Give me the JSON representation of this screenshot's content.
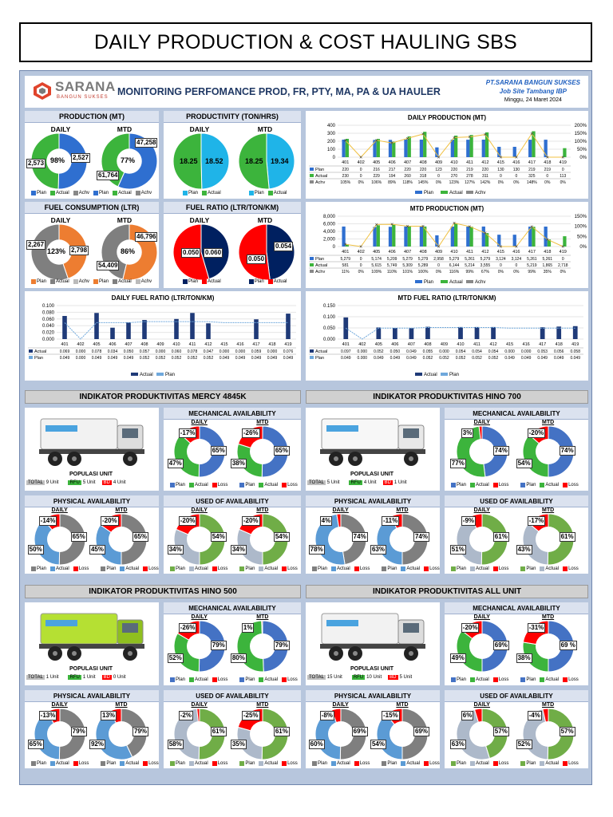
{
  "page_title": "DAILY PRODUCTION & COST HAULING SBS",
  "header": {
    "logo_name": "SARANA",
    "logo_sub": "BANGUN SUKSES",
    "title": "MONITORING PERFOMANCE PROD, FR, PTY, MA, PA & UA HAULER",
    "company": "PT.SARANA BANGUN SUKSES",
    "site": "Job Site Tambang IBP",
    "date": "Minggu, 24 Maret 2024"
  },
  "colors": {
    "plan": "#2f6fd0",
    "actual": "#3cb43c",
    "achv": "#888888",
    "orange": "#ed7d31",
    "navy": "#002060",
    "red": "#ff0000",
    "ma_blue": "#4472c4",
    "light_blue": "#5b9bd5",
    "green": "#70ad47"
  },
  "panels": {
    "production": {
      "title": "PRODUCTION (MT)",
      "daily_label": "DAILY",
      "mtd_label": "MTD",
      "daily_plan": "2,573",
      "daily_actual": "2,527",
      "daily_pct": "98%",
      "mtd_plan": "61,764",
      "mtd_actual": "47,258",
      "mtd_pct": "77%",
      "legend": [
        "Plan",
        "Actual",
        "Achv"
      ]
    },
    "productivity": {
      "title": "PRODUCTIVITY (TON/HRS)",
      "daily_label": "DAILY",
      "mtd_label": "MTD",
      "daily_plan": "18.25",
      "daily_actual": "18.52",
      "mtd_plan": "18.25",
      "mtd_actual": "19.34",
      "legend": [
        "Plan",
        "Actual"
      ]
    },
    "fuel_consumption": {
      "title": "FUEL CONSUMPTION (LTR)",
      "daily_label": "DAILY",
      "mtd_label": "MTD",
      "daily_plan": "2,267",
      "daily_actual": "2,798",
      "daily_pct": "123%",
      "mtd_plan": "54,409",
      "mtd_actual": "46,796",
      "mtd_pct": "86%",
      "legend": [
        "Plan",
        "Actual",
        "Achv"
      ]
    },
    "fuel_ratio": {
      "title": "FUEL RATIO (LTR/TON/KM)",
      "daily_label": "DAILY",
      "mtd_label": "MTD",
      "daily_plan": "0.050",
      "daily_actual": "0.060",
      "mtd_plan": "0.050",
      "mtd_actual": "0.054",
      "legend": [
        "Plan",
        "Actual"
      ]
    }
  },
  "chart_data": [
    {
      "type": "bar",
      "title": "DAILY PRODUCTION (MT)",
      "categories": [
        "401",
        "402",
        "405",
        "406",
        "407",
        "408",
        "409",
        "410",
        "411",
        "412",
        "415",
        "416",
        "417",
        "418",
        "419"
      ],
      "y_ticks": [
        "400",
        "300",
        "200",
        "100",
        "0"
      ],
      "y2_ticks": [
        "200%",
        "150%",
        "100%",
        "50%",
        "0%"
      ],
      "ylim": [
        0,
        400
      ],
      "series": [
        {
          "name": "Plan",
          "values": [
            220,
            0,
            216,
            217,
            220,
            220,
            123,
            220,
            219,
            220,
            130,
            130,
            219,
            219,
            0
          ],
          "labels": [
            "220",
            "0",
            "216",
            "217",
            "220",
            "220",
            "123",
            "220",
            "219",
            "220",
            "130",
            "130",
            "219",
            "219",
            "0"
          ]
        },
        {
          "name": "Actual",
          "values": [
            230,
            0,
            229,
            194,
            260,
            318,
            0,
            270,
            278,
            311,
            0,
            0,
            325,
            0,
            113
          ],
          "labels": [
            "230",
            "0",
            "229",
            "194",
            "260",
            "318",
            "0",
            "270",
            "278",
            "311",
            "0",
            "0",
            "325",
            "0",
            "113"
          ]
        },
        {
          "name": "Achv",
          "values": [
            105,
            0,
            106,
            89,
            118,
            145,
            0,
            123,
            127,
            142,
            0,
            0,
            148,
            0,
            0
          ],
          "labels": [
            "105%",
            "0%",
            "106%",
            "89%",
            "118%",
            "145%",
            "0%",
            "123%",
            "127%",
            "142%",
            "0%",
            "0%",
            "148%",
            "0%",
            "0%"
          ]
        }
      ]
    },
    {
      "type": "bar",
      "title": "MTD PRODUCTION (MT)",
      "categories": [
        "401",
        "402",
        "405",
        "406",
        "407",
        "408",
        "409",
        "410",
        "411",
        "412",
        "415",
        "416",
        "417",
        "418",
        "419"
      ],
      "y_ticks": [
        "8,000",
        "6,000",
        "4,000",
        "2,000",
        "0"
      ],
      "y2_ticks": [
        "150%",
        "100%",
        "50%",
        "0%"
      ],
      "ylim": [
        0,
        8000
      ],
      "series": [
        {
          "name": "Plan",
          "values": [
            5279,
            0,
            5174,
            5209,
            5279,
            5279,
            2958,
            5279,
            5261,
            5279,
            3124,
            3124,
            5261,
            5261,
            0
          ],
          "labels": [
            "5,279",
            "0",
            "5,174",
            "5,209",
            "5,279",
            "5,279",
            "2,958",
            "5,279",
            "5,261",
            "5,279",
            "3,124",
            "3,124",
            "5,261",
            "5,261",
            "0"
          ]
        },
        {
          "name": "Actual",
          "values": [
            581,
            0,
            5615,
            5749,
            5309,
            5289,
            0,
            6144,
            5214,
            3555,
            0,
            0,
            5219,
            1865,
            2718
          ],
          "labels": [
            "581",
            "0",
            "5,615",
            "5,749",
            "5,309",
            "5,289",
            "0",
            "6,144",
            "5,214",
            "3,555",
            "0",
            "0",
            "5,219",
            "1,865",
            "2,718"
          ]
        },
        {
          "name": "Achv",
          "values": [
            11,
            0,
            109,
            110,
            101,
            100,
            0,
            116,
            99,
            67,
            0,
            0,
            99,
            35,
            0
          ],
          "labels": [
            "11%",
            "0%",
            "109%",
            "110%",
            "101%",
            "100%",
            "0%",
            "116%",
            "99%",
            "67%",
            "0%",
            "0%",
            "99%",
            "35%",
            "0%"
          ]
        }
      ]
    },
    {
      "type": "bar",
      "title": "DAILY FUEL RATIO (LTR/TON/KM)",
      "categories": [
        "401",
        "402",
        "405",
        "406",
        "407",
        "408",
        "409",
        "410",
        "411",
        "412",
        "415",
        "416",
        "417",
        "418",
        "419"
      ],
      "y_ticks": [
        "0.100",
        "0.080",
        "0.060",
        "0.040",
        "0.020",
        "0.000"
      ],
      "ylim": [
        0,
        0.1
      ],
      "series": [
        {
          "name": "Actual",
          "values": [
            0.069,
            0,
            0.078,
            0.034,
            0.05,
            0.057,
            0,
            0.06,
            0.078,
            0.047,
            0,
            0,
            0.059,
            0,
            0.076
          ],
          "labels": [
            "0.069",
            "0.000",
            "0.078",
            "0.034",
            "0.050",
            "0.057",
            "0.000",
            "0.060",
            "0.078",
            "0.047",
            "0.000",
            "0.000",
            "0.059",
            "0.000",
            "0.076"
          ]
        },
        {
          "name": "Plan",
          "values": [
            0.049,
            0,
            0.049,
            0.049,
            0.049,
            0.052,
            0.052,
            0.052,
            0.052,
            0.052,
            0.049,
            0.049,
            0.049,
            0.049,
            0.049
          ],
          "labels": [
            "0.049",
            "0.000",
            "0.049",
            "0.049",
            "0.049",
            "0.052",
            "0.052",
            "0.052",
            "0.052",
            "0.052",
            "0.049",
            "0.049",
            "0.049",
            "0.049",
            "0.049"
          ]
        }
      ]
    },
    {
      "type": "bar",
      "title": "MTD FUEL RATIO (LTR/TON/KM)",
      "categories": [
        "401",
        "402",
        "405",
        "406",
        "407",
        "408",
        "409",
        "410",
        "411",
        "412",
        "415",
        "416",
        "417",
        "418",
        "419"
      ],
      "y_ticks": [
        "0.150",
        "0.100",
        "0.050",
        "0.000"
      ],
      "ylim": [
        0,
        0.15
      ],
      "series": [
        {
          "name": "Actual",
          "values": [
            0.097,
            0,
            0.052,
            0.05,
            0.049,
            0.055,
            0,
            0.054,
            0.054,
            0.054,
            0,
            0,
            0.053,
            0.056,
            0.058
          ],
          "labels": [
            "0.097",
            "0.000",
            "0.052",
            "0.050",
            "0.049",
            "0.055",
            "0.000",
            "0.054",
            "0.054",
            "0.054",
            "0.000",
            "0.000",
            "0.053",
            "0.056",
            "0.058"
          ]
        },
        {
          "name": "Plan",
          "values": [
            0.049,
            0,
            0.049,
            0.049,
            0.049,
            0.052,
            0.052,
            0.052,
            0.052,
            0.052,
            0.049,
            0.049,
            0.049,
            0.049,
            0.049
          ],
          "labels": [
            "0.049",
            "0.000",
            "0.049",
            "0.049",
            "0.049",
            "0.052",
            "0.052",
            "0.052",
            "0.052",
            "0.052",
            "0.049",
            "0.049",
            "0.049",
            "0.049",
            "0.049"
          ]
        }
      ]
    }
  ],
  "indicators": [
    {
      "title": "INDIKATOR PRODUKTIVITAS MERCY 4845K",
      "pop_label": "POPULASI UNIT",
      "total_label": "TOTAL",
      "total": "9 Unit",
      "rfu_label": "RFU",
      "rfu": "5 Unit",
      "bd_label": "BD",
      "bd": "4 Unit",
      "ma": {
        "title": "MECHANICAL AVAILABILITY",
        "daily": {
          "plan": "65%",
          "actual": "47%",
          "loss": "-17%"
        },
        "mtd": {
          "plan": "65%",
          "actual": "38%",
          "loss": "-26%"
        }
      },
      "pa": {
        "title": "PHYSICAL AVAILABILITY",
        "daily": {
          "plan": "65%",
          "actual": "50%",
          "loss": "-14%"
        },
        "mtd": {
          "plan": "65%",
          "actual": "45%",
          "loss": "-20%"
        }
      },
      "ua": {
        "title": "USED OF AVAILABILITY",
        "daily": {
          "plan": "54%",
          "actual": "34%",
          "loss": "-20%"
        },
        "mtd": {
          "plan": "54%",
          "actual": "34%",
          "loss": "-20%"
        }
      }
    },
    {
      "title": "INDIKATOR PRODUKTIVITAS HINO 700",
      "pop_label": "POPULASI UNIT",
      "total_label": "TOTAL",
      "total": "5 Unit",
      "rfu_label": "RFU",
      "rfu": "4 Unit",
      "bd_label": "BD",
      "bd": "1 Unit",
      "ma": {
        "title": "MECHANICAL AVAILABILITY",
        "daily": {
          "plan": "74%",
          "actual": "77%",
          "loss": "3%"
        },
        "mtd": {
          "plan": "74%",
          "actual": "54%",
          "loss": "-20%"
        }
      },
      "pa": {
        "title": "PHYSICAL AVAILABILITY",
        "daily": {
          "plan": "74%",
          "actual": "78%",
          "loss": "4%"
        },
        "mtd": {
          "plan": "74%",
          "actual": "63%",
          "loss": "-11%"
        }
      },
      "ua": {
        "title": "USED OF AVAILABILITY",
        "daily": {
          "plan": "61%",
          "actual": "51%",
          "loss": "-9%"
        },
        "mtd": {
          "plan": "61%",
          "actual": "43%",
          "loss": "-17%"
        }
      }
    },
    {
      "title": "INDIKATOR PRODUKTIVITAS HINO 500",
      "pop_label": "POPULASI UNIT",
      "total_label": "TOTAL",
      "total": "1 Unit",
      "rfu_label": "RFU",
      "rfu": "1 Unit",
      "bd_label": "BD",
      "bd": "0 Unit",
      "ma": {
        "title": "MECHANICAL AVAILABILITY",
        "daily": {
          "plan": "79%",
          "actual": "52%",
          "loss": "-26%"
        },
        "mtd": {
          "plan": "79%",
          "actual": "80%",
          "loss": "1%"
        }
      },
      "pa": {
        "title": "PHYSICAL AVAILABILITY",
        "daily": {
          "plan": "79%",
          "actual": "65%",
          "loss": "-13%"
        },
        "mtd": {
          "plan": "79%",
          "actual": "92%",
          "loss": "13%"
        }
      },
      "ua": {
        "title": "USED OF AVAILABILITY",
        "daily": {
          "plan": "61%",
          "actual": "58%",
          "loss": "-2%"
        },
        "mtd": {
          "plan": "61%",
          "actual": "35%",
          "loss": "-25%"
        }
      }
    },
    {
      "title": "INDIKATOR PRODUKTIVITAS ALL UNIT",
      "pop_label": "POPULASI UNIT",
      "total_label": "TOTAL",
      "total": "15 Unit",
      "rfu_label": "RFU",
      "rfu": "10 Unit",
      "bd_label": "BD",
      "bd": "5 Unit",
      "ma": {
        "title": "MECHANICAL AVAILABILITY",
        "daily": {
          "plan": "69%",
          "actual": "49%",
          "loss": "-20%"
        },
        "mtd": {
          "plan": "69 %",
          "actual": "38%",
          "loss": "-31%"
        }
      },
      "pa": {
        "title": "PHYSICAL AVAILABILITY",
        "daily": {
          "plan": "69%",
          "actual": "60%",
          "loss": "-8%"
        },
        "mtd": {
          "plan": "69%",
          "actual": "54%",
          "loss": "-15%"
        }
      },
      "ua": {
        "title": "USED OF AVAILABILITY",
        "daily": {
          "plan": "57%",
          "actual": "63%",
          "loss": "6%"
        },
        "mtd": {
          "plan": "57%",
          "actual": "52%",
          "loss": "-4%"
        }
      }
    }
  ],
  "labels": {
    "daily": "DAILY",
    "mtd": "MTD",
    "plan": "Plan",
    "actual": "Actual",
    "loss": "Loss",
    "achv": "Achv"
  }
}
